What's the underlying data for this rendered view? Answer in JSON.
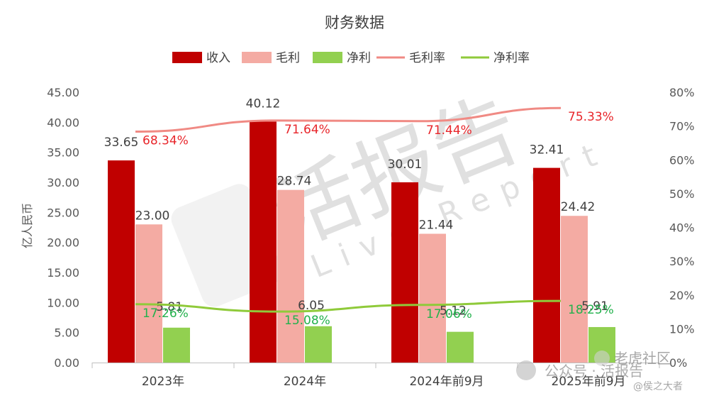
{
  "chart_data": {
    "type": "bar",
    "title": "财务数据",
    "categories": [
      "2023年",
      "2024年",
      "2024年前9月",
      "2025年前9月"
    ],
    "ylabel": "亿人民币",
    "ylim": [
      0,
      45
    ],
    "y_ticks": [
      "0.00",
      "5.00",
      "10.00",
      "15.00",
      "20.00",
      "25.00",
      "30.00",
      "35.00",
      "40.00",
      "45.00"
    ],
    "y2lim": [
      0,
      80
    ],
    "y2_ticks": [
      "0%",
      "10%",
      "20%",
      "30%",
      "40%",
      "50%",
      "60%",
      "70%",
      "80%"
    ],
    "legend_position": "top",
    "grid": false,
    "series": [
      {
        "name": "收入",
        "kind": "bar",
        "axis": "left",
        "color": "#c00000",
        "values": [
          33.65,
          40.12,
          30.01,
          32.41
        ],
        "labels": [
          "33.65",
          "40.12",
          "30.01",
          "32.41"
        ]
      },
      {
        "name": "毛利",
        "kind": "bar",
        "axis": "left",
        "color": "#f4aba3",
        "values": [
          23.0,
          28.74,
          21.44,
          24.42
        ],
        "labels": [
          "23.00",
          "28.74",
          "21.44",
          "24.42"
        ]
      },
      {
        "name": "净利",
        "kind": "bar",
        "axis": "left",
        "color": "#92d050",
        "values": [
          5.81,
          6.05,
          5.12,
          5.91
        ],
        "labels": [
          "5.81",
          "6.05",
          "5.12",
          "5.91"
        ]
      },
      {
        "name": "毛利率",
        "kind": "line",
        "axis": "right",
        "color": "#f08a84",
        "label_color": "#e8262b",
        "values": [
          68.34,
          71.64,
          71.44,
          75.33
        ],
        "labels": [
          "68.34%",
          "71.64%",
          "71.44%",
          "75.33%"
        ]
      },
      {
        "name": "净利率",
        "kind": "line",
        "axis": "right",
        "color": "#8fca3a",
        "label_color": "#22b14c",
        "values": [
          17.26,
          15.08,
          17.06,
          18.25
        ],
        "labels": [
          "17.26%",
          "15.08%",
          "17.06%",
          "18.25%"
        ]
      }
    ]
  },
  "watermark": {
    "brand": "活报告",
    "brand_en": "Live Report",
    "corner_main": "公众号 · 活报告",
    "corner_channel": "老虎社区",
    "corner_handle": "@侯之大者"
  }
}
